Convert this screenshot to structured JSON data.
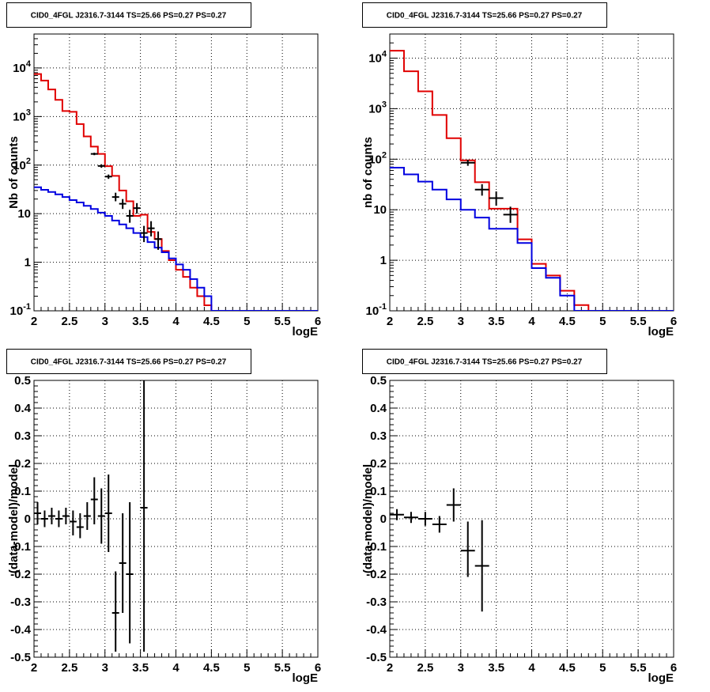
{
  "chart_data": [
    {
      "type": "line",
      "title": "CID0_4FGL J2316.7-3144 TS=25.66 PS=0.27 PS=0.27",
      "xlabel": "logE",
      "ylabel": "Nb of counts",
      "xlim": [
        2,
        6
      ],
      "ylim": [
        0.1,
        50000
      ],
      "y_scale": "log",
      "grid": true,
      "x_ticks": [
        "2",
        "2.5",
        "3",
        "3.5",
        "4",
        "4.5",
        "5",
        "5.5",
        "6"
      ],
      "x_tick_values": [
        2,
        2.5,
        3,
        3.5,
        4,
        4.5,
        5,
        5.5,
        6
      ],
      "y_ticks": [
        "10^{-1}",
        "1",
        "10",
        "10^{2}",
        "10^{3}",
        "10^{4}"
      ],
      "y_tick_values": [
        0.1,
        1,
        10,
        100,
        1000,
        10000
      ],
      "bin_edges": [
        2.0,
        2.1,
        2.2,
        2.3,
        2.4,
        2.5,
        2.6,
        2.7,
        2.8,
        2.9,
        3.0,
        3.1,
        3.2,
        3.3,
        3.4,
        3.5,
        3.6,
        3.7,
        3.8,
        3.9,
        4.0,
        4.1,
        4.2,
        4.3,
        4.4,
        4.5,
        6.0
      ],
      "series": [
        {
          "color": "#e00000",
          "values": [
            7500,
            5500,
            3600,
            2200,
            1300,
            1250,
            700,
            390,
            240,
            170,
            95,
            60,
            30,
            18,
            9,
            9.5,
            4.2,
            3,
            1.7,
            1.1,
            0.7,
            0.5,
            0.3,
            0.2,
            0.13,
            0.1
          ]
        },
        {
          "color": "#0000e0",
          "values": [
            35,
            31,
            28,
            25,
            22,
            19,
            17,
            14.5,
            12.5,
            10.5,
            9,
            7.2,
            6,
            5,
            4,
            3.3,
            2.6,
            2,
            1.6,
            1.2,
            0.9,
            0.7,
            0.45,
            0.3,
            0.2,
            0.1
          ]
        },
        {
          "color": "#000000",
          "style": "errorbar",
          "points": [
            {
              "x": 2.85,
              "y": 170,
              "xerr": 0.05,
              "ylo": 160,
              "yhi": 180
            },
            {
              "x": 2.95,
              "y": 96,
              "xerr": 0.05,
              "ylo": 88,
              "yhi": 104
            },
            {
              "x": 3.05,
              "y": 58,
              "xerr": 0.05,
              "ylo": 52,
              "yhi": 64
            },
            {
              "x": 3.15,
              "y": 22,
              "xerr": 0.05,
              "ylo": 18,
              "yhi": 27
            },
            {
              "x": 3.25,
              "y": 16,
              "xerr": 0.05,
              "ylo": 12.5,
              "yhi": 20
            },
            {
              "x": 3.35,
              "y": 9,
              "xerr": 0.05,
              "ylo": 6.5,
              "yhi": 12
            },
            {
              "x": 3.45,
              "y": 13,
              "xerr": 0.05,
              "ylo": 10,
              "yhi": 16.5
            },
            {
              "x": 3.55,
              "y": 4,
              "xerr": 0.05,
              "ylo": 2.6,
              "yhi": 5.6
            },
            {
              "x": 3.65,
              "y": 5,
              "xerr": 0.05,
              "ylo": 3.4,
              "yhi": 7
            },
            {
              "x": 3.75,
              "y": 3,
              "xerr": 0.05,
              "ylo": 1.8,
              "yhi": 4.3
            }
          ]
        }
      ]
    },
    {
      "type": "line",
      "title": "CID0_4FGL J2316.7-3144 TS=25.66 PS=0.27 PS=0.27",
      "xlabel": "logE",
      "ylabel": "nb of counts",
      "xlim": [
        2,
        6
      ],
      "ylim": [
        0.1,
        30000
      ],
      "y_scale": "log",
      "grid": true,
      "x_ticks": [
        "2",
        "2.5",
        "3",
        "3.5",
        "4",
        "4.5",
        "5",
        "5.5",
        "6"
      ],
      "x_tick_values": [
        2,
        2.5,
        3,
        3.5,
        4,
        4.5,
        5,
        5.5,
        6
      ],
      "y_ticks": [
        "10^{-1}",
        "1",
        "10",
        "10^{2}",
        "10^{3}",
        "10^{4}"
      ],
      "y_tick_values": [
        0.1,
        1,
        10,
        100,
        1000,
        10000
      ],
      "bin_edges": [
        2.0,
        2.2,
        2.4,
        2.6,
        2.8,
        3.0,
        3.2,
        3.4,
        3.6,
        3.8,
        4.0,
        4.2,
        4.4,
        4.6,
        4.8,
        6.0
      ],
      "series": [
        {
          "color": "#e00000",
          "values": [
            14000,
            5500,
            2200,
            750,
            260,
            95,
            35,
            10.5,
            10.5,
            2.6,
            0.85,
            0.5,
            0.25,
            0.13,
            0.1
          ]
        },
        {
          "color": "#0000e0",
          "values": [
            68,
            50,
            36,
            25,
            16,
            10,
            7,
            4.2,
            4.2,
            2.2,
            0.7,
            0.45,
            0.2,
            0.1,
            0.1
          ]
        },
        {
          "color": "#000000",
          "style": "errorbar",
          "points": [
            {
              "x": 3.1,
              "y": 85,
              "xerr": 0.1,
              "ylo": 74,
              "yhi": 97
            },
            {
              "x": 3.3,
              "y": 25,
              "xerr": 0.1,
              "ylo": 19,
              "yhi": 32
            },
            {
              "x": 3.5,
              "y": 17,
              "xerr": 0.1,
              "ylo": 12,
              "yhi": 23
            },
            {
              "x": 3.7,
              "y": 8,
              "xerr": 0.1,
              "ylo": 5.5,
              "yhi": 11.5
            }
          ]
        }
      ]
    },
    {
      "type": "scatter",
      "title": "CID0_4FGL J2316.7-3144 TS=25.66 PS=0.27 PS=0.27",
      "xlabel": "logE",
      "ylabel": "(data-model)/model",
      "xlim": [
        2,
        6
      ],
      "ylim": [
        -0.5,
        0.5
      ],
      "grid": true,
      "x_ticks": [
        "2",
        "2.5",
        "3",
        "3.5",
        "4",
        "4.5",
        "5",
        "5.5",
        "6"
      ],
      "x_tick_values": [
        2,
        2.5,
        3,
        3.5,
        4,
        4.5,
        5,
        5.5,
        6
      ],
      "y_ticks": [
        "-0.5",
        "-0.4",
        "-0.3",
        "-0.2",
        "-0.1",
        "0",
        "0.1",
        "0.2",
        "0.3",
        "0.4",
        "0.5"
      ],
      "y_tick_values": [
        -0.5,
        -0.4,
        -0.3,
        -0.2,
        -0.1,
        0,
        0.1,
        0.2,
        0.3,
        0.4,
        0.5
      ],
      "series": [
        {
          "color": "#000000",
          "style": "errorbar",
          "points": [
            {
              "x": 2.05,
              "y": 0.02,
              "xerr": 0.05,
              "ylo": -0.02,
              "yhi": 0.06
            },
            {
              "x": 2.15,
              "y": 0.0,
              "xerr": 0.05,
              "ylo": -0.03,
              "yhi": 0.03
            },
            {
              "x": 2.25,
              "y": 0.01,
              "xerr": 0.05,
              "ylo": -0.02,
              "yhi": 0.04
            },
            {
              "x": 2.35,
              "y": 0.0,
              "xerr": 0.05,
              "ylo": -0.03,
              "yhi": 0.03
            },
            {
              "x": 2.45,
              "y": 0.01,
              "xerr": 0.05,
              "ylo": -0.02,
              "yhi": 0.04
            },
            {
              "x": 2.55,
              "y": -0.01,
              "xerr": 0.05,
              "ylo": -0.06,
              "yhi": 0.03
            },
            {
              "x": 2.65,
              "y": -0.03,
              "xerr": 0.05,
              "ylo": -0.07,
              "yhi": 0.02
            },
            {
              "x": 2.75,
              "y": 0.01,
              "xerr": 0.05,
              "ylo": -0.04,
              "yhi": 0.06
            },
            {
              "x": 2.85,
              "y": 0.07,
              "xerr": 0.05,
              "ylo": -0.02,
              "yhi": 0.15
            },
            {
              "x": 2.95,
              "y": 0.01,
              "xerr": 0.05,
              "ylo": -0.09,
              "yhi": 0.11
            },
            {
              "x": 3.05,
              "y": 0.02,
              "xerr": 0.05,
              "ylo": -0.12,
              "yhi": 0.16
            },
            {
              "x": 3.15,
              "y": -0.34,
              "xerr": 0.05,
              "ylo": -0.48,
              "yhi": -0.19
            },
            {
              "x": 3.25,
              "y": -0.16,
              "xerr": 0.05,
              "ylo": -0.34,
              "yhi": 0.02
            },
            {
              "x": 3.35,
              "y": -0.2,
              "xerr": 0.05,
              "ylo": -0.45,
              "yhi": 0.06
            },
            {
              "x": 3.55,
              "y": 0.04,
              "xerr": 0.05,
              "ylo": -0.48,
              "yhi": 0.5
            }
          ]
        }
      ]
    },
    {
      "type": "scatter",
      "title": "CID0_4FGL J2316.7-3144 TS=25.66 PS=0.27 PS=0.27",
      "xlabel": "logE",
      "ylabel": "(data-model)/model",
      "xlim": [
        2,
        6
      ],
      "ylim": [
        -0.5,
        0.5
      ],
      "grid": true,
      "x_ticks": [
        "2",
        "2.5",
        "3",
        "3.5",
        "4",
        "4.5",
        "5",
        "5.5",
        "6"
      ],
      "x_tick_values": [
        2,
        2.5,
        3,
        3.5,
        4,
        4.5,
        5,
        5.5,
        6
      ],
      "y_ticks": [
        "-0.5",
        "-0.4",
        "-0.3",
        "-0.2",
        "-0.1",
        "0",
        "0.1",
        "0.2",
        "0.3",
        "0.4",
        "0.5"
      ],
      "y_tick_values": [
        -0.5,
        -0.4,
        -0.3,
        -0.2,
        -0.1,
        0,
        0.1,
        0.2,
        0.3,
        0.4,
        0.5
      ],
      "series": [
        {
          "color": "#000000",
          "style": "errorbar",
          "points": [
            {
              "x": 2.1,
              "y": 0.015,
              "xerr": 0.1,
              "ylo": -0.005,
              "yhi": 0.035
            },
            {
              "x": 2.3,
              "y": 0.005,
              "xerr": 0.1,
              "ylo": -0.015,
              "yhi": 0.025
            },
            {
              "x": 2.5,
              "y": 0.0,
              "xerr": 0.1,
              "ylo": -0.025,
              "yhi": 0.025
            },
            {
              "x": 2.7,
              "y": -0.02,
              "xerr": 0.1,
              "ylo": -0.05,
              "yhi": 0.01
            },
            {
              "x": 2.9,
              "y": 0.05,
              "xerr": 0.1,
              "ylo": -0.01,
              "yhi": 0.11
            },
            {
              "x": 3.1,
              "y": -0.115,
              "xerr": 0.1,
              "ylo": -0.21,
              "yhi": -0.01
            },
            {
              "x": 3.3,
              "y": -0.17,
              "xerr": 0.1,
              "ylo": -0.335,
              "yhi": -0.005
            }
          ]
        }
      ]
    }
  ]
}
